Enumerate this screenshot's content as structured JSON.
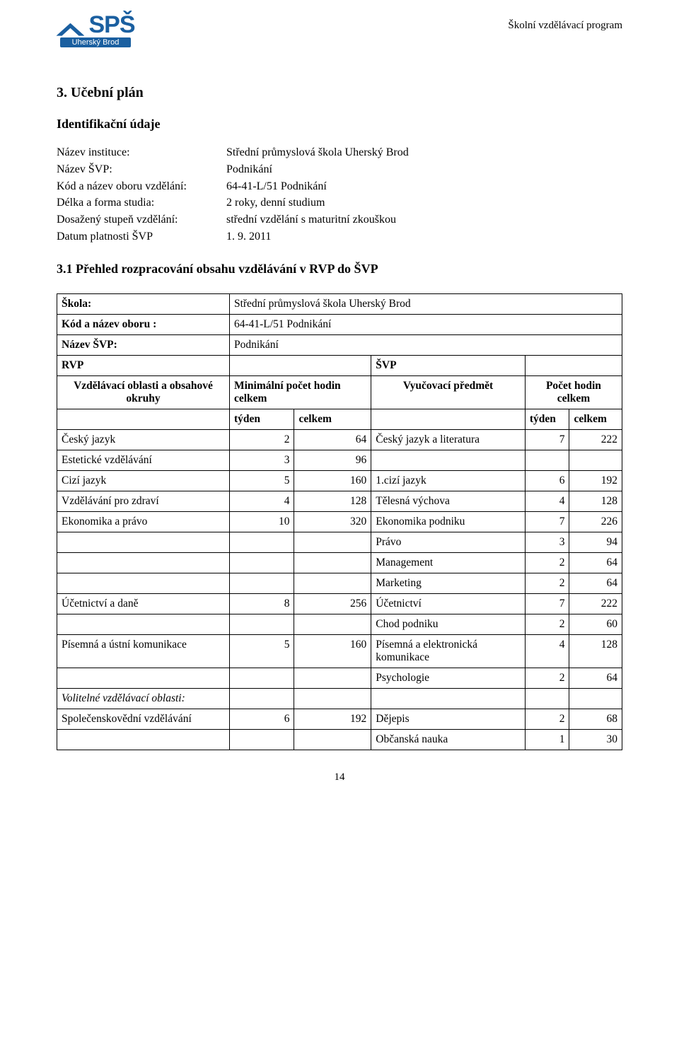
{
  "header": {
    "logo_text": "SPŠ",
    "logo_sub": "Uherský Brod",
    "program_label": "Školní vzdělávací program"
  },
  "section_title": "3. Učební plán",
  "sub_title": "Identifikační údaje",
  "identity": {
    "labels": {
      "instituce": "Název instituce:",
      "svp": "Název ŠVP:",
      "kod": "Kód a název oboru vzdělání:",
      "delka": "Délka a forma studia:",
      "stupen": "Dosažený stupeň vzdělání:",
      "datum": "Datum platnosti ŠVP"
    },
    "values": {
      "instituce": "Střední průmyslová škola Uherský Brod",
      "svp": "Podnikání",
      "kod": "64-41-L/51 Podnikání",
      "delka": "2 roky, denní studium",
      "stupen": "střední vzdělání s maturitní zkouškou",
      "datum": "1. 9. 2011"
    }
  },
  "sub2_title": "3.1 Přehled rozpracování obsahu vzdělávání v RVP do ŠVP",
  "table_head": {
    "skola_label": "Škola:",
    "skola_value": "Střední průmyslová škola Uherský Brod",
    "kod_label": "Kód a název oboru :",
    "kod_value": "64-41-L/51 Podnikání",
    "svp_label": "Název ŠVP:",
    "svp_value": "Podnikání",
    "rvp_header": "RVP",
    "svp_header": "ŠVP",
    "okruhy": "Vzdělávací oblasti a obsahové okruhy",
    "minimal": "Minimální počet hodin celkem",
    "predmet": "Vyučovací předmět",
    "pocet": "Počet hodin celkem",
    "tyden": "týden",
    "celkem": "celkem"
  },
  "rows": [
    {
      "l": "Český jazyk",
      "t1": "2",
      "c1": "64",
      "subj": "Český jazyk a literatura",
      "t2": "7",
      "c2": "222"
    },
    {
      "l": "Estetické vzdělávání",
      "t1": "3",
      "c1": "96",
      "subj": "",
      "t2": "",
      "c2": ""
    },
    {
      "l": "Cizí jazyk",
      "t1": "5",
      "c1": "160",
      "subj": "1.cizí jazyk",
      "t2": "6",
      "c2": "192"
    },
    {
      "l": "Vzdělávání pro zdraví",
      "t1": "4",
      "c1": "128",
      "subj": "Tělesná výchova",
      "t2": "4",
      "c2": "128"
    },
    {
      "l": "Ekonomika a právo",
      "t1": "10",
      "c1": "320",
      "subj": "Ekonomika podniku",
      "t2": "7",
      "c2": "226"
    },
    {
      "l": "",
      "t1": "",
      "c1": "",
      "subj": "Právo",
      "t2": "3",
      "c2": "94"
    },
    {
      "l": "",
      "t1": "",
      "c1": "",
      "subj": "Management",
      "t2": "2",
      "c2": "64"
    },
    {
      "l": "",
      "t1": "",
      "c1": "",
      "subj": "Marketing",
      "t2": "2",
      "c2": "64"
    },
    {
      "l": "Účetnictví a daně",
      "t1": "8",
      "c1": "256",
      "subj": "Účetnictví",
      "t2": "7",
      "c2": "222"
    },
    {
      "l": "",
      "t1": "",
      "c1": "",
      "subj": "Chod podniku",
      "t2": "2",
      "c2": "60"
    },
    {
      "l": "Písemná a ústní komunikace",
      "t1": "5",
      "c1": "160",
      "subj": "Písemná a elektronická komunikace",
      "t2": "4",
      "c2": "128"
    },
    {
      "l": "",
      "t1": "",
      "c1": "",
      "subj": "Psychologie",
      "t2": "2",
      "c2": "64"
    },
    {
      "l": "Volitelné vzdělávací oblasti:",
      "t1": "",
      "c1": "",
      "subj": "",
      "t2": "",
      "c2": "",
      "italic": true
    },
    {
      "l": "Společenskovědní vzdělávání",
      "t1": "6",
      "c1": "192",
      "subj": "Dějepis",
      "t2": "2",
      "c2": "68"
    },
    {
      "l": "",
      "t1": "",
      "c1": "",
      "subj": "Občanská nauka",
      "t2": "1",
      "c2": "30"
    }
  ],
  "page_number": "14"
}
